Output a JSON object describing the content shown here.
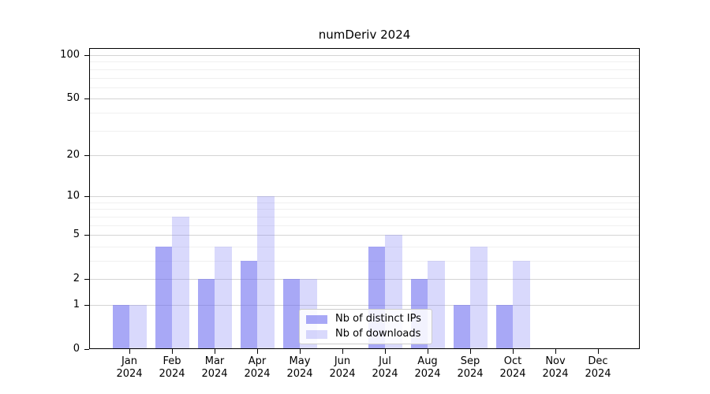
{
  "title": "numDeriv 2024",
  "chart_data": {
    "type": "bar",
    "title": "numDeriv 2024",
    "x_labels": [
      {
        "month": "Jan",
        "year": "2024"
      },
      {
        "month": "Feb",
        "year": "2024"
      },
      {
        "month": "Mar",
        "year": "2024"
      },
      {
        "month": "Apr",
        "year": "2024"
      },
      {
        "month": "May",
        "year": "2024"
      },
      {
        "month": "Jun",
        "year": "2024"
      },
      {
        "month": "Jul",
        "year": "2024"
      },
      {
        "month": "Aug",
        "year": "2024"
      },
      {
        "month": "Sep",
        "year": "2024"
      },
      {
        "month": "Oct",
        "year": "2024"
      },
      {
        "month": "Nov",
        "year": "2024"
      },
      {
        "month": "Dec",
        "year": "2024"
      }
    ],
    "series": [
      {
        "name": "Nb of distinct IPs",
        "color": "rgba(110,110,240,0.60)",
        "values": [
          1,
          4,
          2,
          3,
          2,
          0,
          4,
          2,
          1,
          1,
          0,
          0
        ]
      },
      {
        "name": "Nb of downloads",
        "color": "rgba(130,130,245,0.30)",
        "values": [
          1,
          7,
          4,
          10,
          2,
          0,
          5,
          3,
          4,
          3,
          0,
          0
        ]
      }
    ],
    "y_scale": "log10(1+x)",
    "y_axis_ticks": [
      0,
      1,
      2,
      5,
      10,
      20,
      50,
      100
    ],
    "y_minor_gridlines": [
      3,
      4,
      6,
      7,
      8,
      9,
      30,
      40,
      60,
      70,
      80,
      90
    ],
    "ylim": [
      0,
      110
    ],
    "grid": true,
    "legend_position": "lower center",
    "colors": {
      "major_grid": "#d4d4d4",
      "minor_grid": "#f0f0f0",
      "spine": "#000000",
      "text": "#000000",
      "legend_border": "#cccccc"
    }
  }
}
